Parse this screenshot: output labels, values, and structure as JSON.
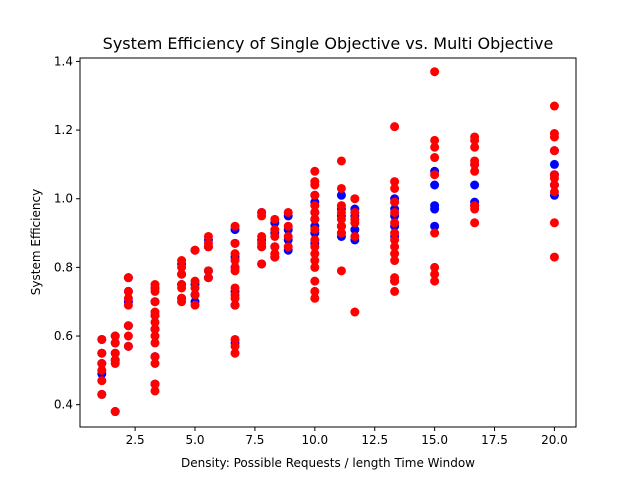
{
  "chart_data": {
    "type": "scatter",
    "title": "System Efficiency of Single Objective vs. Multi Objective",
    "xlabel": "Density: Possible Requests / length Time Window",
    "ylabel": "System Efficiency",
    "xlim": [
      0.2,
      20.9
    ],
    "ylim": [
      0.335,
      1.41
    ],
    "xticks": [
      2.5,
      5.0,
      7.5,
      10.0,
      12.5,
      15.0,
      17.5,
      20.0
    ],
    "xtick_labels": [
      "2.5",
      "5.0",
      "7.5",
      "10.0",
      "12.5",
      "15.0",
      "17.5",
      "20.0"
    ],
    "yticks": [
      0.4,
      0.6,
      0.8,
      1.0,
      1.2,
      1.4
    ],
    "ytick_labels": [
      "0.4",
      "0.6",
      "0.8",
      "1.0",
      "1.2",
      "1.4"
    ],
    "grid": false,
    "series": [
      {
        "color": "#0000ff",
        "points": [
          [
            1.11,
            0.59
          ],
          [
            1.11,
            0.55
          ],
          [
            1.11,
            0.52
          ],
          [
            1.11,
            0.49
          ],
          [
            1.11,
            0.43
          ],
          [
            1.67,
            0.6
          ],
          [
            1.67,
            0.58
          ],
          [
            1.67,
            0.55
          ],
          [
            1.67,
            0.53
          ],
          [
            1.67,
            0.38
          ],
          [
            2.22,
            0.77
          ],
          [
            2.22,
            0.73
          ],
          [
            2.22,
            0.7
          ],
          [
            2.22,
            0.63
          ],
          [
            2.22,
            0.57
          ],
          [
            3.33,
            0.74
          ],
          [
            3.33,
            0.7
          ],
          [
            3.33,
            0.66
          ],
          [
            3.33,
            0.62
          ],
          [
            3.33,
            0.54
          ],
          [
            3.33,
            0.46
          ],
          [
            4.44,
            0.81
          ],
          [
            4.44,
            0.78
          ],
          [
            4.44,
            0.75
          ],
          [
            4.44,
            0.71
          ],
          [
            5.0,
            0.85
          ],
          [
            5.0,
            0.75
          ],
          [
            5.0,
            0.72
          ],
          [
            5.0,
            0.7
          ],
          [
            5.56,
            0.88
          ],
          [
            5.56,
            0.86
          ],
          [
            5.56,
            0.79
          ],
          [
            5.56,
            0.77
          ],
          [
            6.67,
            0.91
          ],
          [
            6.67,
            0.87
          ],
          [
            6.67,
            0.83
          ],
          [
            6.67,
            0.8
          ],
          [
            6.67,
            0.73
          ],
          [
            6.67,
            0.69
          ],
          [
            6.67,
            0.58
          ],
          [
            7.78,
            0.96
          ],
          [
            7.78,
            0.88
          ],
          [
            7.78,
            0.86
          ],
          [
            7.78,
            0.81
          ],
          [
            8.33,
            0.93
          ],
          [
            8.33,
            0.9
          ],
          [
            8.33,
            0.86
          ],
          [
            8.33,
            0.83
          ],
          [
            8.89,
            0.95
          ],
          [
            8.89,
            0.91
          ],
          [
            8.89,
            0.88
          ],
          [
            8.89,
            0.85
          ],
          [
            10.0,
            1.01
          ],
          [
            10.0,
            0.99
          ],
          [
            10.0,
            0.96
          ],
          [
            10.0,
            0.94
          ],
          [
            10.0,
            0.92
          ],
          [
            10.0,
            0.9
          ],
          [
            10.0,
            0.87
          ],
          [
            11.11,
            1.01
          ],
          [
            11.11,
            0.97
          ],
          [
            11.11,
            0.95
          ],
          [
            11.11,
            0.92
          ],
          [
            11.11,
            0.9
          ],
          [
            11.11,
            0.89
          ],
          [
            11.67,
            0.97
          ],
          [
            11.67,
            0.95
          ],
          [
            11.67,
            0.91
          ],
          [
            11.67,
            0.88
          ],
          [
            13.33,
            1.0
          ],
          [
            13.33,
            0.97
          ],
          [
            13.33,
            0.95
          ],
          [
            13.33,
            0.92
          ],
          [
            13.33,
            0.89
          ],
          [
            13.33,
            0.76
          ],
          [
            15.0,
            1.08
          ],
          [
            15.0,
            1.04
          ],
          [
            15.0,
            0.98
          ],
          [
            15.0,
            0.97
          ],
          [
            15.0,
            0.92
          ],
          [
            16.67,
            1.1
          ],
          [
            16.67,
            1.04
          ],
          [
            16.67,
            0.99
          ],
          [
            16.67,
            0.98
          ],
          [
            20.0,
            1.14
          ],
          [
            20.0,
            1.1
          ],
          [
            20.0,
            1.07
          ],
          [
            20.0,
            1.04
          ],
          [
            20.0,
            1.01
          ]
        ]
      },
      {
        "color": "#ff0000",
        "points": [
          [
            1.11,
            0.59
          ],
          [
            1.11,
            0.55
          ],
          [
            1.11,
            0.52
          ],
          [
            1.11,
            0.5
          ],
          [
            1.11,
            0.47
          ],
          [
            1.11,
            0.43
          ],
          [
            1.67,
            0.6
          ],
          [
            1.67,
            0.58
          ],
          [
            1.67,
            0.55
          ],
          [
            1.67,
            0.53
          ],
          [
            1.67,
            0.52
          ],
          [
            1.67,
            0.38
          ],
          [
            2.22,
            0.77
          ],
          [
            2.22,
            0.73
          ],
          [
            2.22,
            0.71
          ],
          [
            2.22,
            0.69
          ],
          [
            2.22,
            0.63
          ],
          [
            2.22,
            0.6
          ],
          [
            2.22,
            0.57
          ],
          [
            3.33,
            0.75
          ],
          [
            3.33,
            0.74
          ],
          [
            3.33,
            0.73
          ],
          [
            3.33,
            0.7
          ],
          [
            3.33,
            0.67
          ],
          [
            3.33,
            0.66
          ],
          [
            3.33,
            0.64
          ],
          [
            3.33,
            0.62
          ],
          [
            3.33,
            0.6
          ],
          [
            3.33,
            0.58
          ],
          [
            3.33,
            0.54
          ],
          [
            3.33,
            0.52
          ],
          [
            3.33,
            0.46
          ],
          [
            3.33,
            0.44
          ],
          [
            4.44,
            0.82
          ],
          [
            4.44,
            0.8
          ],
          [
            4.44,
            0.78
          ],
          [
            4.44,
            0.75
          ],
          [
            4.44,
            0.74
          ],
          [
            4.44,
            0.71
          ],
          [
            4.44,
            0.7
          ],
          [
            5.0,
            0.85
          ],
          [
            5.0,
            0.76
          ],
          [
            5.0,
            0.74
          ],
          [
            5.0,
            0.72
          ],
          [
            5.0,
            0.69
          ],
          [
            5.56,
            0.89
          ],
          [
            5.56,
            0.87
          ],
          [
            5.56,
            0.86
          ],
          [
            5.56,
            0.79
          ],
          [
            5.56,
            0.77
          ],
          [
            6.67,
            0.92
          ],
          [
            6.67,
            0.87
          ],
          [
            6.67,
            0.84
          ],
          [
            6.67,
            0.82
          ],
          [
            6.67,
            0.8
          ],
          [
            6.67,
            0.79
          ],
          [
            6.67,
            0.74
          ],
          [
            6.67,
            0.72
          ],
          [
            6.67,
            0.71
          ],
          [
            6.67,
            0.69
          ],
          [
            6.67,
            0.59
          ],
          [
            6.67,
            0.57
          ],
          [
            6.67,
            0.55
          ],
          [
            7.78,
            0.96
          ],
          [
            7.78,
            0.95
          ],
          [
            7.78,
            0.89
          ],
          [
            7.78,
            0.87
          ],
          [
            7.78,
            0.86
          ],
          [
            7.78,
            0.81
          ],
          [
            8.33,
            0.94
          ],
          [
            8.33,
            0.91
          ],
          [
            8.33,
            0.89
          ],
          [
            8.33,
            0.86
          ],
          [
            8.33,
            0.84
          ],
          [
            8.33,
            0.83
          ],
          [
            8.89,
            0.96
          ],
          [
            8.89,
            0.92
          ],
          [
            8.89,
            0.89
          ],
          [
            8.89,
            0.86
          ],
          [
            10.0,
            1.08
          ],
          [
            10.0,
            1.05
          ],
          [
            10.0,
            1.04
          ],
          [
            10.0,
            1.01
          ],
          [
            10.0,
            0.98
          ],
          [
            10.0,
            0.96
          ],
          [
            10.0,
            0.94
          ],
          [
            10.0,
            0.91
          ],
          [
            10.0,
            0.88
          ],
          [
            10.0,
            0.86
          ],
          [
            10.0,
            0.84
          ],
          [
            10.0,
            0.82
          ],
          [
            10.0,
            0.8
          ],
          [
            10.0,
            0.76
          ],
          [
            10.0,
            0.73
          ],
          [
            10.0,
            0.71
          ],
          [
            11.11,
            1.11
          ],
          [
            11.11,
            1.03
          ],
          [
            11.11,
            0.98
          ],
          [
            11.11,
            0.96
          ],
          [
            11.11,
            0.94
          ],
          [
            11.11,
            0.92
          ],
          [
            11.11,
            0.9
          ],
          [
            11.11,
            0.79
          ],
          [
            11.67,
            1.0
          ],
          [
            11.67,
            0.96
          ],
          [
            11.67,
            0.94
          ],
          [
            11.67,
            0.93
          ],
          [
            11.67,
            0.89
          ],
          [
            11.67,
            0.67
          ],
          [
            13.33,
            1.21
          ],
          [
            13.33,
            1.05
          ],
          [
            13.33,
            1.03
          ],
          [
            13.33,
            0.99
          ],
          [
            13.33,
            0.96
          ],
          [
            13.33,
            0.93
          ],
          [
            13.33,
            0.9
          ],
          [
            13.33,
            0.88
          ],
          [
            13.33,
            0.86
          ],
          [
            13.33,
            0.84
          ],
          [
            13.33,
            0.82
          ],
          [
            13.33,
            0.77
          ],
          [
            13.33,
            0.76
          ],
          [
            13.33,
            0.73
          ],
          [
            15.0,
            1.37
          ],
          [
            15.0,
            1.17
          ],
          [
            15.0,
            1.15
          ],
          [
            15.0,
            1.12
          ],
          [
            15.0,
            1.07
          ],
          [
            15.0,
            0.9
          ],
          [
            15.0,
            0.8
          ],
          [
            15.0,
            0.78
          ],
          [
            15.0,
            0.76
          ],
          [
            16.67,
            1.18
          ],
          [
            16.67,
            1.17
          ],
          [
            16.67,
            1.15
          ],
          [
            16.67,
            1.11
          ],
          [
            16.67,
            1.1
          ],
          [
            16.67,
            1.08
          ],
          [
            16.67,
            0.98
          ],
          [
            16.67,
            0.97
          ],
          [
            16.67,
            0.93
          ],
          [
            20.0,
            1.27
          ],
          [
            20.0,
            1.19
          ],
          [
            20.0,
            1.18
          ],
          [
            20.0,
            1.14
          ],
          [
            20.0,
            1.07
          ],
          [
            20.0,
            1.06
          ],
          [
            20.0,
            1.04
          ],
          [
            20.0,
            1.02
          ],
          [
            20.0,
            0.93
          ],
          [
            20.0,
            0.83
          ]
        ]
      }
    ]
  }
}
